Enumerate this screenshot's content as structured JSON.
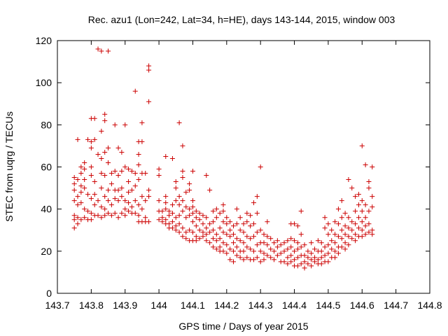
{
  "chart_data": {
    "type": "scatter",
    "title": "Rec. azu1 (Lon=242, Lat=34, h=HE), days 143-144, 2015, window 003",
    "xlabel": "GPS time / Days of year 2015",
    "ylabel": "STEC from uqrg / TECUs",
    "xlim": [
      143.7,
      144.8
    ],
    "ylim": [
      0,
      120
    ],
    "xticks": [
      "143.7",
      "143.8",
      "143.9",
      "144",
      "144.1",
      "144.2",
      "144.3",
      "144.4",
      "144.5",
      "144.6",
      "144.7",
      "144.8"
    ],
    "yticks": [
      "0",
      "20",
      "40",
      "60",
      "80",
      "100",
      "120"
    ],
    "marker": "+",
    "color": "#cc0000",
    "grid": false,
    "legend": "none",
    "points": [
      [
        143.75,
        55
      ],
      [
        143.75,
        52
      ],
      [
        143.75,
        49
      ],
      [
        143.75,
        44
      ],
      [
        143.75,
        37
      ],
      [
        143.75,
        35
      ],
      [
        143.75,
        31
      ],
      [
        143.76,
        73
      ],
      [
        143.76,
        54
      ],
      [
        143.76,
        46
      ],
      [
        143.76,
        42
      ],
      [
        143.76,
        36
      ],
      [
        143.76,
        33
      ],
      [
        143.77,
        60
      ],
      [
        143.77,
        57
      ],
      [
        143.77,
        51
      ],
      [
        143.77,
        48
      ],
      [
        143.77,
        43
      ],
      [
        143.77,
        35
      ],
      [
        143.78,
        62
      ],
      [
        143.78,
        59
      ],
      [
        143.78,
        54
      ],
      [
        143.78,
        50
      ],
      [
        143.78,
        40
      ],
      [
        143.78,
        36
      ],
      [
        143.79,
        73
      ],
      [
        143.79,
        47
      ],
      [
        143.79,
        39
      ],
      [
        143.79,
        35
      ],
      [
        143.8,
        83
      ],
      [
        143.8,
        72
      ],
      [
        143.8,
        69
      ],
      [
        143.8,
        60
      ],
      [
        143.8,
        56
      ],
      [
        143.8,
        45
      ],
      [
        143.8,
        38
      ],
      [
        143.8,
        35
      ],
      [
        143.81,
        83
      ],
      [
        143.81,
        73
      ],
      [
        143.81,
        53
      ],
      [
        143.81,
        47
      ],
      [
        143.81,
        42
      ],
      [
        143.81,
        37
      ],
      [
        143.82,
        116
      ],
      [
        143.82,
        66
      ],
      [
        143.82,
        44
      ],
      [
        143.82,
        37
      ],
      [
        143.83,
        115
      ],
      [
        143.83,
        77
      ],
      [
        143.83,
        64
      ],
      [
        143.83,
        57
      ],
      [
        143.83,
        50
      ],
      [
        143.83,
        41
      ],
      [
        143.83,
        36
      ],
      [
        143.84,
        85
      ],
      [
        143.84,
        82
      ],
      [
        143.84,
        67
      ],
      [
        143.84,
        56
      ],
      [
        143.84,
        46
      ],
      [
        143.84,
        40
      ],
      [
        143.84,
        37
      ],
      [
        143.85,
        115
      ],
      [
        143.85,
        69
      ],
      [
        143.85,
        62
      ],
      [
        143.85,
        49
      ],
      [
        143.85,
        44
      ],
      [
        143.85,
        38
      ],
      [
        143.86,
        57
      ],
      [
        143.86,
        52
      ],
      [
        143.86,
        42
      ],
      [
        143.86,
        37
      ],
      [
        143.87,
        80
      ],
      [
        143.87,
        58
      ],
      [
        143.87,
        49
      ],
      [
        143.87,
        45
      ],
      [
        143.87,
        38
      ],
      [
        143.88,
        69
      ],
      [
        143.88,
        56
      ],
      [
        143.88,
        49
      ],
      [
        143.88,
        44
      ],
      [
        143.88,
        36
      ],
      [
        143.89,
        67
      ],
      [
        143.89,
        58
      ],
      [
        143.89,
        50
      ],
      [
        143.89,
        46
      ],
      [
        143.89,
        38
      ],
      [
        143.9,
        80
      ],
      [
        143.9,
        60
      ],
      [
        143.9,
        44
      ],
      [
        143.9,
        40
      ],
      [
        143.9,
        37
      ],
      [
        143.91,
        59
      ],
      [
        143.91,
        53
      ],
      [
        143.91,
        48
      ],
      [
        143.91,
        43
      ],
      [
        143.91,
        39
      ],
      [
        143.92,
        58
      ],
      [
        143.92,
        49
      ],
      [
        143.92,
        41
      ],
      [
        143.92,
        38
      ],
      [
        143.93,
        96
      ],
      [
        143.93,
        57
      ],
      [
        143.93,
        51
      ],
      [
        143.93,
        44
      ],
      [
        143.93,
        38
      ],
      [
        143.94,
        72
      ],
      [
        143.94,
        66
      ],
      [
        143.94,
        61
      ],
      [
        143.94,
        54
      ],
      [
        143.94,
        42
      ],
      [
        143.94,
        37
      ],
      [
        143.94,
        34
      ],
      [
        143.95,
        81
      ],
      [
        143.95,
        72
      ],
      [
        143.95,
        57
      ],
      [
        143.95,
        46
      ],
      [
        143.95,
        40
      ],
      [
        143.95,
        34
      ],
      [
        143.96,
        57
      ],
      [
        143.96,
        44
      ],
      [
        143.96,
        36
      ],
      [
        143.96,
        34
      ],
      [
        143.97,
        108
      ],
      [
        143.97,
        106
      ],
      [
        143.97,
        91
      ],
      [
        143.97,
        49
      ],
      [
        143.97,
        46
      ],
      [
        143.97,
        34
      ],
      [
        144.0,
        59
      ],
      [
        144.0,
        56
      ],
      [
        144.0,
        44
      ],
      [
        144.0,
        39
      ],
      [
        144.0,
        35
      ],
      [
        144.01,
        39
      ],
      [
        144.01,
        36
      ],
      [
        144.01,
        34
      ],
      [
        144.02,
        65
      ],
      [
        144.02,
        46
      ],
      [
        144.02,
        43
      ],
      [
        144.02,
        40
      ],
      [
        144.02,
        35
      ],
      [
        144.02,
        33
      ],
      [
        144.03,
        39
      ],
      [
        144.03,
        37
      ],
      [
        144.03,
        33
      ],
      [
        144.03,
        31
      ],
      [
        144.04,
        64
      ],
      [
        144.04,
        42
      ],
      [
        144.04,
        38
      ],
      [
        144.04,
        34
      ],
      [
        144.04,
        31
      ],
      [
        144.05,
        53
      ],
      [
        144.05,
        50
      ],
      [
        144.05,
        44
      ],
      [
        144.05,
        36
      ],
      [
        144.05,
        32
      ],
      [
        144.05,
        30
      ],
      [
        144.06,
        81
      ],
      [
        144.06,
        46
      ],
      [
        144.06,
        42
      ],
      [
        144.06,
        37
      ],
      [
        144.06,
        33
      ],
      [
        144.06,
        29
      ],
      [
        144.07,
        70
      ],
      [
        144.07,
        58
      ],
      [
        144.07,
        55
      ],
      [
        144.07,
        44
      ],
      [
        144.07,
        39
      ],
      [
        144.07,
        31
      ],
      [
        144.07,
        27
      ],
      [
        144.08,
        48
      ],
      [
        144.08,
        41
      ],
      [
        144.08,
        36
      ],
      [
        144.08,
        29
      ],
      [
        144.08,
        26
      ],
      [
        144.09,
        52
      ],
      [
        144.09,
        49
      ],
      [
        144.09,
        40
      ],
      [
        144.09,
        37
      ],
      [
        144.09,
        30
      ],
      [
        144.09,
        25
      ],
      [
        144.1,
        58
      ],
      [
        144.1,
        44
      ],
      [
        144.1,
        41
      ],
      [
        144.1,
        38
      ],
      [
        144.1,
        34
      ],
      [
        144.1,
        29
      ],
      [
        144.1,
        25
      ],
      [
        144.11,
        39
      ],
      [
        144.11,
        36
      ],
      [
        144.11,
        32
      ],
      [
        144.11,
        27
      ],
      [
        144.11,
        25
      ],
      [
        144.12,
        38
      ],
      [
        144.12,
        35
      ],
      [
        144.12,
        30
      ],
      [
        144.12,
        26
      ],
      [
        144.13,
        37
      ],
      [
        144.13,
        33
      ],
      [
        144.13,
        29
      ],
      [
        144.13,
        27
      ],
      [
        144.14,
        56
      ],
      [
        144.14,
        36
      ],
      [
        144.14,
        31
      ],
      [
        144.14,
        28
      ],
      [
        144.14,
        25
      ],
      [
        144.15,
        49
      ],
      [
        144.15,
        33
      ],
      [
        144.15,
        29
      ],
      [
        144.15,
        24
      ],
      [
        144.16,
        39
      ],
      [
        144.16,
        34
      ],
      [
        144.16,
        30
      ],
      [
        144.16,
        26
      ],
      [
        144.16,
        22
      ],
      [
        144.17,
        40
      ],
      [
        144.17,
        36
      ],
      [
        144.17,
        28
      ],
      [
        144.17,
        25
      ],
      [
        144.17,
        21
      ],
      [
        144.18,
        38
      ],
      [
        144.18,
        31
      ],
      [
        144.18,
        26
      ],
      [
        144.18,
        22
      ],
      [
        144.18,
        20
      ],
      [
        144.19,
        42
      ],
      [
        144.19,
        39
      ],
      [
        144.19,
        34
      ],
      [
        144.19,
        29
      ],
      [
        144.19,
        24
      ],
      [
        144.19,
        20
      ],
      [
        144.2,
        36
      ],
      [
        144.2,
        33
      ],
      [
        144.2,
        28
      ],
      [
        144.2,
        23
      ],
      [
        144.2,
        19
      ],
      [
        144.21,
        34
      ],
      [
        144.21,
        30
      ],
      [
        144.21,
        27
      ],
      [
        144.21,
        21
      ],
      [
        144.21,
        16
      ],
      [
        144.22,
        32
      ],
      [
        144.22,
        28
      ],
      [
        144.22,
        24
      ],
      [
        144.22,
        20
      ],
      [
        144.22,
        15
      ],
      [
        144.23,
        40
      ],
      [
        144.23,
        33
      ],
      [
        144.23,
        26
      ],
      [
        144.23,
        22
      ],
      [
        144.23,
        18
      ],
      [
        144.24,
        36
      ],
      [
        144.24,
        30
      ],
      [
        144.24,
        25
      ],
      [
        144.24,
        20
      ],
      [
        144.24,
        17
      ],
      [
        144.25,
        33
      ],
      [
        144.25,
        29
      ],
      [
        144.25,
        24
      ],
      [
        144.25,
        20
      ],
      [
        144.25,
        16
      ],
      [
        144.26,
        38
      ],
      [
        144.26,
        34
      ],
      [
        144.26,
        27
      ],
      [
        144.26,
        22
      ],
      [
        144.26,
        17
      ],
      [
        144.27,
        37
      ],
      [
        144.27,
        32
      ],
      [
        144.27,
        26
      ],
      [
        144.27,
        21
      ],
      [
        144.27,
        16
      ],
      [
        144.28,
        43
      ],
      [
        144.28,
        33
      ],
      [
        144.28,
        27
      ],
      [
        144.28,
        20
      ],
      [
        144.28,
        16
      ],
      [
        144.29,
        46
      ],
      [
        144.29,
        38
      ],
      [
        144.29,
        29
      ],
      [
        144.29,
        23
      ],
      [
        144.29,
        17
      ],
      [
        144.3,
        60
      ],
      [
        144.3,
        30
      ],
      [
        144.3,
        24
      ],
      [
        144.3,
        20
      ],
      [
        144.3,
        15
      ],
      [
        144.31,
        28
      ],
      [
        144.31,
        24
      ],
      [
        144.31,
        19
      ],
      [
        144.31,
        16
      ],
      [
        144.32,
        34
      ],
      [
        144.32,
        27
      ],
      [
        144.32,
        23
      ],
      [
        144.32,
        18
      ],
      [
        144.33,
        26
      ],
      [
        144.33,
        21
      ],
      [
        144.33,
        17
      ],
      [
        144.34,
        24
      ],
      [
        144.34,
        20
      ],
      [
        144.34,
        16
      ],
      [
        144.35,
        25
      ],
      [
        144.35,
        22
      ],
      [
        144.35,
        18
      ],
      [
        144.36,
        23
      ],
      [
        144.36,
        19
      ],
      [
        144.36,
        15
      ],
      [
        144.37,
        24
      ],
      [
        144.37,
        20
      ],
      [
        144.37,
        15
      ],
      [
        144.38,
        25
      ],
      [
        144.38,
        21
      ],
      [
        144.38,
        17
      ],
      [
        144.38,
        14
      ],
      [
        144.39,
        33
      ],
      [
        144.39,
        26
      ],
      [
        144.39,
        22
      ],
      [
        144.39,
        18
      ],
      [
        144.39,
        15
      ],
      [
        144.4,
        33
      ],
      [
        144.4,
        25
      ],
      [
        144.4,
        20
      ],
      [
        144.4,
        16
      ],
      [
        144.4,
        13
      ],
      [
        144.41,
        32
      ],
      [
        144.41,
        24
      ],
      [
        144.41,
        21
      ],
      [
        144.41,
        17
      ],
      [
        144.41,
        13
      ],
      [
        144.42,
        39
      ],
      [
        144.42,
        28
      ],
      [
        144.42,
        22
      ],
      [
        144.42,
        18
      ],
      [
        144.42,
        14
      ],
      [
        144.43,
        23
      ],
      [
        144.43,
        18
      ],
      [
        144.43,
        15
      ],
      [
        144.43,
        12
      ],
      [
        144.44,
        20
      ],
      [
        144.44,
        17
      ],
      [
        144.44,
        14
      ],
      [
        144.45,
        24
      ],
      [
        144.45,
        19
      ],
      [
        144.45,
        16
      ],
      [
        144.45,
        13
      ],
      [
        144.46,
        21
      ],
      [
        144.46,
        17
      ],
      [
        144.46,
        15
      ],
      [
        144.47,
        25
      ],
      [
        144.47,
        20
      ],
      [
        144.47,
        16
      ],
      [
        144.47,
        14
      ],
      [
        144.48,
        24
      ],
      [
        144.48,
        20
      ],
      [
        144.48,
        17
      ],
      [
        144.48,
        14
      ],
      [
        144.49,
        36
      ],
      [
        144.49,
        31
      ],
      [
        144.49,
        22
      ],
      [
        144.49,
        18
      ],
      [
        144.49,
        15
      ],
      [
        144.5,
        33
      ],
      [
        144.5,
        28
      ],
      [
        144.5,
        23
      ],
      [
        144.5,
        19
      ],
      [
        144.5,
        15
      ],
      [
        144.51,
        30
      ],
      [
        144.51,
        25
      ],
      [
        144.51,
        21
      ],
      [
        144.51,
        17
      ],
      [
        144.52,
        34
      ],
      [
        144.52,
        28
      ],
      [
        144.52,
        24
      ],
      [
        144.52,
        20
      ],
      [
        144.52,
        17
      ],
      [
        144.53,
        40
      ],
      [
        144.53,
        33
      ],
      [
        144.53,
        27
      ],
      [
        144.53,
        22
      ],
      [
        144.53,
        19
      ],
      [
        144.54,
        44
      ],
      [
        144.54,
        36
      ],
      [
        144.54,
        30
      ],
      [
        144.54,
        26
      ],
      [
        144.54,
        22
      ],
      [
        144.55,
        38
      ],
      [
        144.55,
        32
      ],
      [
        144.55,
        28
      ],
      [
        144.55,
        24
      ],
      [
        144.55,
        21
      ],
      [
        144.56,
        54
      ],
      [
        144.56,
        36
      ],
      [
        144.56,
        31
      ],
      [
        144.56,
        27
      ],
      [
        144.56,
        23
      ],
      [
        144.57,
        50
      ],
      [
        144.57,
        34
      ],
      [
        144.57,
        30
      ],
      [
        144.57,
        26
      ],
      [
        144.58,
        46
      ],
      [
        144.58,
        39
      ],
      [
        144.58,
        33
      ],
      [
        144.58,
        28
      ],
      [
        144.58,
        25
      ],
      [
        144.59,
        47
      ],
      [
        144.59,
        42
      ],
      [
        144.59,
        36
      ],
      [
        144.59,
        31
      ],
      [
        144.59,
        27
      ],
      [
        144.6,
        70
      ],
      [
        144.6,
        44
      ],
      [
        144.6,
        39
      ],
      [
        144.6,
        34
      ],
      [
        144.6,
        30
      ],
      [
        144.6,
        27
      ],
      [
        144.61,
        61
      ],
      [
        144.61,
        42
      ],
      [
        144.61,
        36
      ],
      [
        144.61,
        32
      ],
      [
        144.61,
        28
      ],
      [
        144.62,
        53
      ],
      [
        144.62,
        50
      ],
      [
        144.62,
        39
      ],
      [
        144.62,
        33
      ],
      [
        144.62,
        29
      ],
      [
        144.63,
        60
      ],
      [
        144.63,
        46
      ],
      [
        144.63,
        41
      ],
      [
        144.63,
        30
      ],
      [
        144.63,
        28
      ]
    ]
  }
}
